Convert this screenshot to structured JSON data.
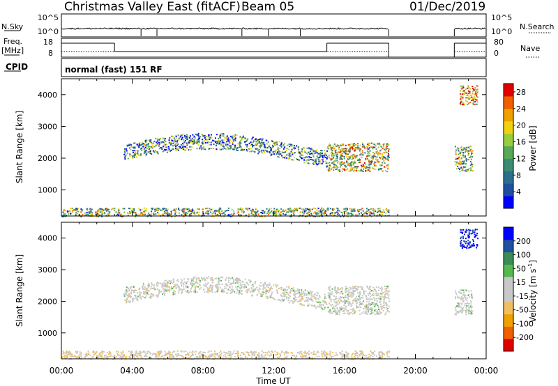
{
  "header": {
    "title": "Christmas Valley East (fitACF)",
    "beam": "Beam 05",
    "date": "01/Dec/2019"
  },
  "params": {
    "nsky_label": "N.Sky",
    "nsky_ticks": [
      "10^5",
      "10^0"
    ],
    "nsearch_label": "N.Search",
    "nsearch_ticks": [
      "10^5",
      "10^0"
    ],
    "freq_label_1": "Freq.",
    "freq_label_2": "[MHz]",
    "freq_ticks": [
      "18",
      "8"
    ],
    "nave_label": "Nave",
    "nave_ticks": [
      "80",
      "0"
    ],
    "cpid_label": "CPID",
    "cpid_value": "normal (fast) 151 RF"
  },
  "colors": {
    "power_scale": [
      "#0000ff",
      "#1f4fa0",
      "#2d6e8c",
      "#3b8c73",
      "#58a85a",
      "#9acd3c",
      "#f0d010",
      "#f0a000",
      "#f06000",
      "#e00000"
    ],
    "velocity_scale": [
      "#e00000",
      "#f06000",
      "#f0a000",
      "#f0c060",
      "#c8c8c8",
      "#c8c8c8",
      "#58b850",
      "#3b8c55",
      "#2050a0",
      "#0000ff"
    ]
  },
  "chart_data": [
    {
      "type": "heatmap",
      "parameter": "Power",
      "ylabel": "Slant Range [km]",
      "xlabel": "Time UT",
      "x_ticks": [
        "00:00",
        "04:00",
        "08:00",
        "12:00",
        "16:00",
        "20:00",
        "00:00"
      ],
      "y_ticks": [
        "1000",
        "2000",
        "3000",
        "4000"
      ],
      "ylim": [
        180,
        4500
      ],
      "xlim_hours": [
        0,
        24
      ],
      "colorbar": {
        "label": "Power [dB]",
        "ticks": [
          "4",
          "8",
          "12",
          "16",
          "20",
          "24",
          "28"
        ],
        "range": [
          0,
          30
        ]
      },
      "features": [
        {
          "name": "near-range",
          "t_start": 0.0,
          "t_end": 18.5,
          "r_min": 180,
          "r_max": 450,
          "value": 14
        },
        {
          "name": "band-2000km",
          "t_start": 3.5,
          "t_end": 15.0,
          "r_min": 1700,
          "r_max": 2900,
          "value": 10
        },
        {
          "name": "band-late",
          "t_start": 15.0,
          "t_end": 18.5,
          "r_min": 1600,
          "r_max": 2500,
          "value": 17
        },
        {
          "name": "late-patch",
          "t_start": 22.2,
          "t_end": 23.2,
          "r_min": 1600,
          "r_max": 2400,
          "value": 14
        },
        {
          "name": "high-range-patch",
          "t_start": 22.5,
          "t_end": 23.5,
          "r_min": 3700,
          "r_max": 4300,
          "value": 22
        }
      ]
    },
    {
      "type": "heatmap",
      "parameter": "Velocity",
      "ylabel": "Slant Range [km]",
      "xlabel": "Time UT",
      "x_ticks": [
        "00:00",
        "04:00",
        "08:00",
        "12:00",
        "16:00",
        "20:00",
        "00:00"
      ],
      "y_ticks": [
        "1000",
        "2000",
        "3000",
        "4000"
      ],
      "ylim": [
        180,
        4500
      ],
      "xlim_hours": [
        0,
        24
      ],
      "colorbar": {
        "label": "Velocity [m s",
        "label_sup": "-1",
        "label_end": "]",
        "ticks": [
          "200",
          "100",
          "50",
          "15",
          "-15",
          "-50",
          "-100",
          "-200"
        ],
        "range": [
          -250,
          250
        ]
      },
      "features": [
        {
          "name": "near-range",
          "t_start": 0.0,
          "t_end": 18.5,
          "r_min": 180,
          "r_max": 450,
          "value": -40
        },
        {
          "name": "band-2000km",
          "t_start": 3.5,
          "t_end": 15.0,
          "r_min": 1700,
          "r_max": 2900,
          "value": 0
        },
        {
          "name": "band-late",
          "t_start": 15.0,
          "t_end": 18.5,
          "r_min": 1600,
          "r_max": 2500,
          "value": 0
        },
        {
          "name": "late-patch",
          "t_start": 22.2,
          "t_end": 23.2,
          "r_min": 1600,
          "r_max": 2400,
          "value": 5
        },
        {
          "name": "high-range-patch",
          "t_start": 22.5,
          "t_end": 23.5,
          "r_min": 3700,
          "r_max": 4300,
          "value": 220
        }
      ]
    }
  ]
}
